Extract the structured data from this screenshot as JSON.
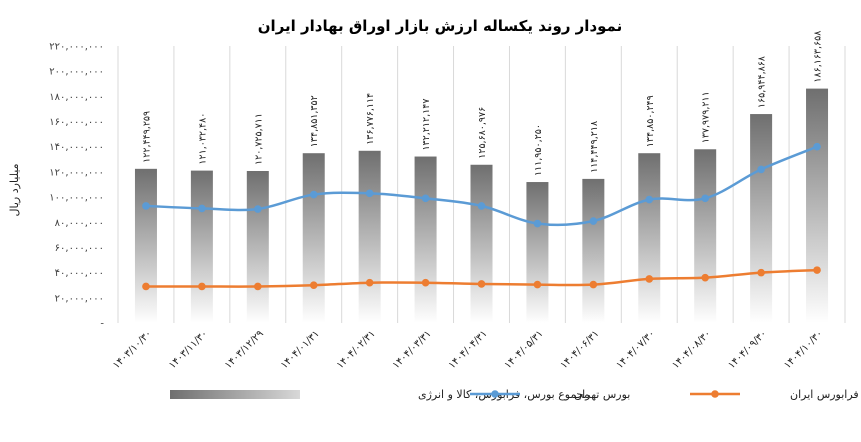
{
  "chart_data": {
    "type": "bar",
    "title": "نمودار روند یکساله ارزش بازار اوراق بهادار ایران",
    "ylabel": "میلیارد ریال",
    "xlabel": "",
    "ylim": [
      0,
      220000000
    ],
    "yticks": [
      {
        "value": 0,
        "label": "-"
      },
      {
        "value": 20000000,
        "label": "۲۰,۰۰۰,۰۰۰"
      },
      {
        "value": 40000000,
        "label": "۴۰,۰۰۰,۰۰۰"
      },
      {
        "value": 60000000,
        "label": "۶۰,۰۰۰,۰۰۰"
      },
      {
        "value": 80000000,
        "label": "۸۰,۰۰۰,۰۰۰"
      },
      {
        "value": 100000000,
        "label": "۱۰۰,۰۰۰,۰۰۰"
      },
      {
        "value": 120000000,
        "label": "۱۲۰,۰۰۰,۰۰۰"
      },
      {
        "value": 140000000,
        "label": "۱۴۰,۰۰۰,۰۰۰"
      },
      {
        "value": 160000000,
        "label": "۱۶۰,۰۰۰,۰۰۰"
      },
      {
        "value": 180000000,
        "label": "۱۸۰,۰۰۰,۰۰۰"
      },
      {
        "value": 200000000,
        "label": "۲۰۰,۰۰۰,۰۰۰"
      },
      {
        "value": 220000000,
        "label": "۲۲۰,۰۰۰,۰۰۰"
      }
    ],
    "categories": [
      "۱۴۰۳/۱۰/۳۰",
      "۱۴۰۳/۱۱/۳۰",
      "۱۴۰۳/۱۲/۲۹",
      "۱۴۰۴/۰۱/۳۱",
      "۱۴۰۴/۰۲/۳۱",
      "۱۴۰۴/۰۳/۳۱",
      "۱۴۰۴/۰۴/۳۱",
      "۱۴۰۴/۰۵/۳۱",
      "۱۴۰۴/۰۶/۳۱",
      "۱۴۰۴/۰۷/۳۰",
      "۱۴۰۴/۰۸/۳۰",
      "۱۴۰۴/۰۹/۳۰",
      "۱۴۰۴/۱۰/۳۰"
    ],
    "series": [
      {
        "name": "مجموع بورس، فرابورس، کالا و انرژی",
        "kind": "bar",
        "color": "#7f7f7f",
        "values": [
          122449259,
          121032480,
          120725711,
          134851352,
          136776114,
          132212147,
          125680976,
          111950250,
          114449218,
          134850249,
          137979211,
          165944868,
          186163658
        ],
        "labels": [
          "۱۲۲,۴۴۹,۲۵۹",
          "۱۲۱,۰۳۲,۴۸۰",
          "۱۲۰,۷۲۵,۷۱۱",
          "۱۳۴,۸۵۱,۳۵۲",
          "۱۳۶,۷۷۶,۱۱۴",
          "۱۳۲,۲۱۲,۱۴۷",
          "۱۲۵,۶۸۰,۹۷۶",
          "۱۱۱,۹۵۰,۲۵۰",
          "۱۱۴,۴۴۹,۲۱۸",
          "۱۳۴,۸۵۰,۲۴۹",
          "۱۳۷,۹۷۹,۲۱۱",
          "۱۶۵,۹۴۴,۸۶۸",
          "۱۸۶,۱۶۳,۶۵۸"
        ]
      },
      {
        "name": "بورس تهران",
        "kind": "line",
        "color": "#5b9bd5",
        "values": [
          93000000,
          91000000,
          90500000,
          102000000,
          103000000,
          99000000,
          93000000,
          79000000,
          81000000,
          98000000,
          99000000,
          122000000,
          140000000
        ]
      },
      {
        "name": "فرابورس ایران",
        "kind": "line",
        "color": "#ed7d31",
        "values": [
          29000000,
          29000000,
          29000000,
          30000000,
          32000000,
          32000000,
          31000000,
          30500000,
          30500000,
          35000000,
          36000000,
          40000000,
          42000000
        ]
      }
    ],
    "legend": "bottom",
    "grid": {
      "vertical": true,
      "horizontal": false
    }
  }
}
